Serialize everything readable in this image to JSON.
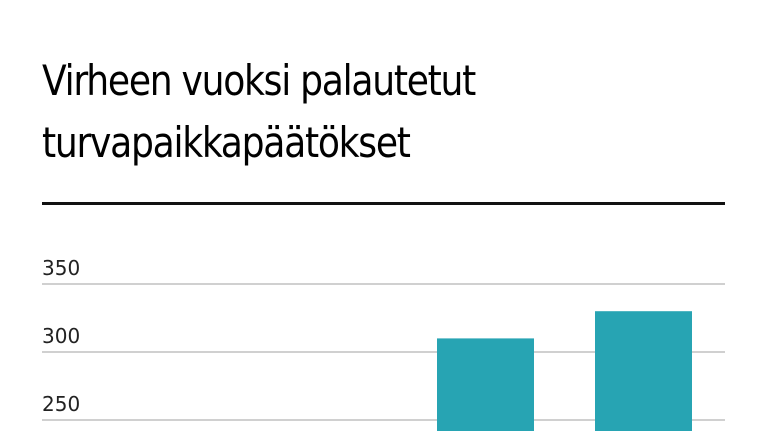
{
  "chart_data": {
    "type": "bar",
    "title": "Virheen vuoksi palautetut turvapaikkapäätökset",
    "categories": [
      "",
      ""
    ],
    "values": [
      310,
      330
    ],
    "yticks": [
      "250",
      "300",
      "350"
    ],
    "ylim": [
      250,
      350
    ],
    "grid": true,
    "bar_color": "#27a4b3"
  }
}
